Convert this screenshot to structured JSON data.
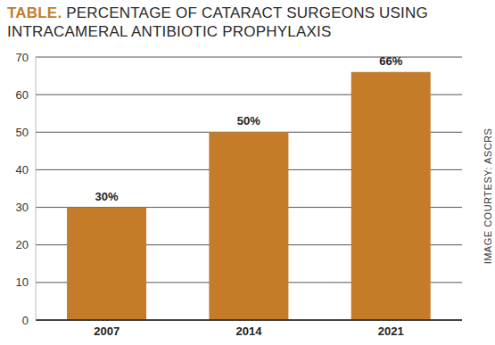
{
  "chart_data": {
    "type": "bar",
    "title": "TABLE. PERCENTAGE OF CATARACT SURGEONS USING INTRACAMERAL ANTIBIOTIC PROPHYLAXIS",
    "annotations": [
      "IMAGE COURTESY: ASCRS"
    ],
    "categories": [
      "2007",
      "2014",
      "2021"
    ],
    "values": [
      30,
      50,
      66
    ],
    "value_labels": [
      "30%",
      "50%",
      "66%"
    ],
    "data_labels": true,
    "color": "#c47c2b",
    "ylim": [
      0,
      70
    ],
    "yticks": [
      0,
      10,
      20,
      30,
      40,
      50,
      60,
      70
    ],
    "grid": true
  }
}
